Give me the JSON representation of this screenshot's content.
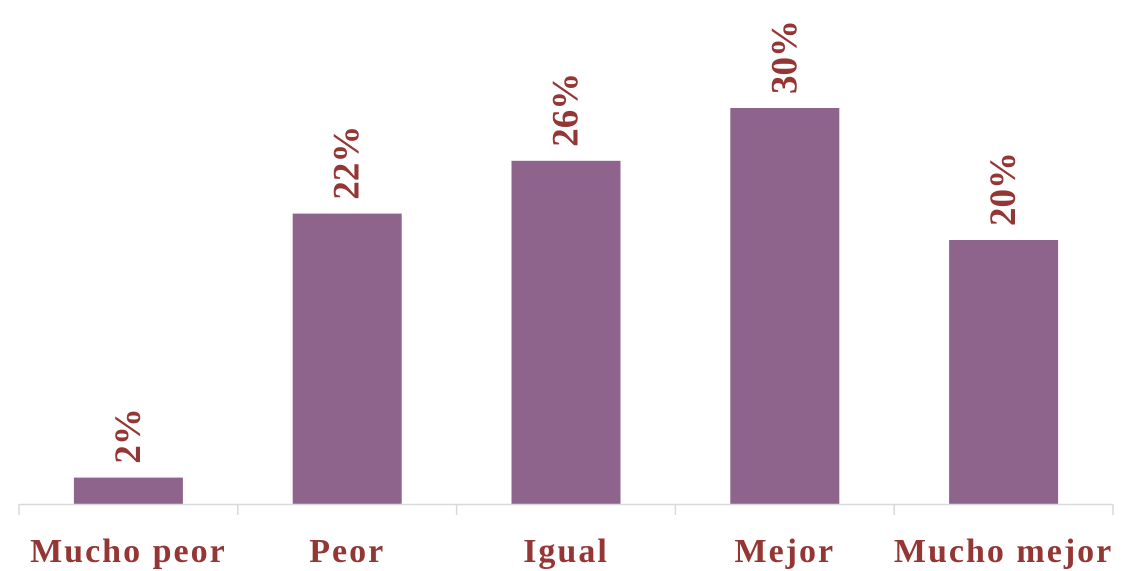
{
  "chart_data": {
    "type": "bar",
    "categories": [
      "Mucho peor",
      "Peor",
      "Igual",
      "Mejor",
      "Mucho mejor"
    ],
    "values": [
      2,
      22,
      26,
      30,
      20
    ],
    "value_labels": [
      "2%",
      "22%",
      "26%",
      "30%",
      "20%"
    ],
    "unit": "%",
    "title": "",
    "xlabel": "",
    "ylabel": "",
    "ylim": [
      0,
      30
    ],
    "grid": false,
    "legend": "none",
    "colors": {
      "bar": "#8f648c",
      "label": "#943634",
      "axis": "#d9d9d9"
    }
  }
}
